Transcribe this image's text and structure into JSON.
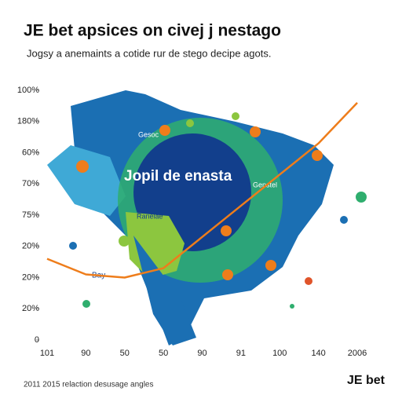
{
  "chart_data": {
    "type": "line",
    "title": "JE bet apsices on civej j nestago",
    "subtitle": "Jogsy a anemaints a cotide rur de stego decipe agots.",
    "categories": [
      "101",
      "90",
      "50",
      "50",
      "90",
      "91",
      "100",
      "140",
      "2006"
    ],
    "series": [
      {
        "name": "line",
        "color": "#ee7d1b",
        "values": [
          2.6,
          2.1,
          2.0,
          2.3,
          3.3,
          4.3,
          5.3,
          6.3,
          7.6
        ]
      }
    ],
    "ylim": [
      0,
      8
    ],
    "yticks": [
      {
        "value": 0,
        "label": "0"
      },
      {
        "value": 1,
        "label": "20%"
      },
      {
        "value": 2,
        "label": "20%"
      },
      {
        "value": 3,
        "label": "20%"
      },
      {
        "value": 4,
        "label": "75%"
      },
      {
        "value": 5,
        "label": "70%"
      },
      {
        "value": 6,
        "label": "60%"
      },
      {
        "value": 7,
        "label": "180%"
      },
      {
        "value": 8,
        "label": "100%"
      }
    ],
    "annotations": [
      "Jopil de enasta",
      "Gesoc",
      "Genstel",
      "Ranelae",
      "Bay"
    ],
    "footer": "2011 2015 relaction desusage angles",
    "brand": "JE bet"
  }
}
